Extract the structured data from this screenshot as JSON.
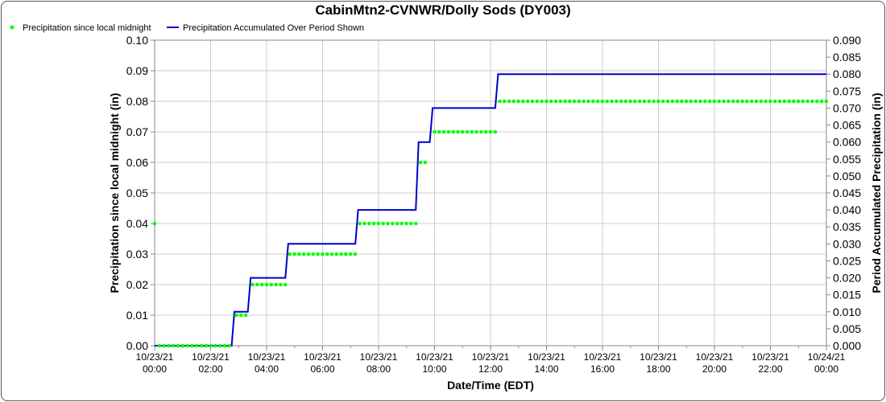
{
  "chart_data": {
    "type": "line",
    "title": "CabinMtn2-CVNWR/Dolly Sods (DY003)",
    "xlabel": "Date/Time (EDT)",
    "ylabel_left": "Precipitation since local midnight (in)",
    "ylabel_right": "Period Accumulated Precipitation (in)",
    "ylim_left": [
      0,
      0.1
    ],
    "ylim_right": [
      0,
      0.09
    ],
    "grid": true,
    "legend_placement": "top-left",
    "x_tick_labels": [
      [
        "10/23/21",
        "00:00"
      ],
      [
        "10/23/21",
        "02:00"
      ],
      [
        "10/23/21",
        "04:00"
      ],
      [
        "10/23/21",
        "06:00"
      ],
      [
        "10/23/21",
        "08:00"
      ],
      [
        "10/23/21",
        "10:00"
      ],
      [
        "10/23/21",
        "12:00"
      ],
      [
        "10/23/21",
        "14:00"
      ],
      [
        "10/23/21",
        "16:00"
      ],
      [
        "10/23/21",
        "18:00"
      ],
      [
        "10/23/21",
        "20:00"
      ],
      [
        "10/23/21",
        "22:00"
      ],
      [
        "10/24/21",
        "00:00"
      ]
    ],
    "y_left_ticks": [
      "0.00",
      "0.01",
      "0.02",
      "0.03",
      "0.04",
      "0.05",
      "0.06",
      "0.07",
      "0.08",
      "0.09",
      "0.10"
    ],
    "y_right_ticks": [
      "0.000",
      "0.005",
      "0.010",
      "0.015",
      "0.020",
      "0.025",
      "0.030",
      "0.035",
      "0.040",
      "0.045",
      "0.050",
      "0.055",
      "0.060",
      "0.065",
      "0.070",
      "0.075",
      "0.080",
      "0.085",
      "0.090"
    ],
    "series": [
      {
        "name": "Precipitation since local midnight",
        "color": "#00ff00",
        "marker": "dot",
        "axis": "left",
        "segments": [
          {
            "start_hour": 0.0,
            "end_hour": 0.0,
            "value": 0.04
          },
          {
            "start_hour": 0.17,
            "end_hour": 2.75,
            "value": 0.0
          },
          {
            "start_hour": 2.92,
            "end_hour": 3.33,
            "value": 0.01
          },
          {
            "start_hour": 3.5,
            "end_hour": 4.67,
            "value": 0.02
          },
          {
            "start_hour": 4.83,
            "end_hour": 7.17,
            "value": 0.03
          },
          {
            "start_hour": 7.33,
            "end_hour": 9.33,
            "value": 0.04
          },
          {
            "start_hour": 9.5,
            "end_hour": 9.83,
            "value": 0.06
          },
          {
            "start_hour": 10.0,
            "end_hour": 12.17,
            "value": 0.07
          },
          {
            "start_hour": 12.33,
            "end_hour": 24.0,
            "value": 0.08
          }
        ]
      },
      {
        "name": "Precipitation Accumulated Over Period Shown",
        "color": "#0000cc",
        "axis": "right",
        "x_hours": [
          0.0,
          2.75,
          2.85,
          3.33,
          3.43,
          4.67,
          4.77,
          7.17,
          7.27,
          9.33,
          9.43,
          9.83,
          9.93,
          12.17,
          12.27,
          24.0
        ],
        "y_values": [
          0.0,
          0.0,
          0.01,
          0.01,
          0.02,
          0.02,
          0.03,
          0.03,
          0.04,
          0.04,
          0.06,
          0.06,
          0.07,
          0.07,
          0.08,
          0.08
        ]
      }
    ]
  }
}
